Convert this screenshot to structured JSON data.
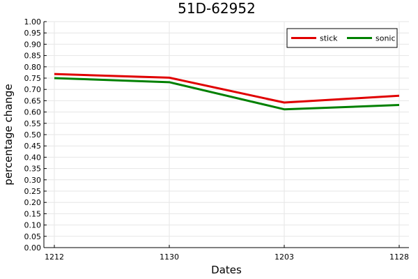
{
  "chart_data": {
    "type": "line",
    "title": "51D-62952",
    "xlabel": "Dates",
    "ylabel": "percentage change",
    "categories": [
      "1212",
      "1130",
      "1203",
      "1128"
    ],
    "ylim": [
      0,
      1.0
    ],
    "yticks": [
      "0.00",
      "0.05",
      "0.10",
      "0.15",
      "0.20",
      "0.25",
      "0.30",
      "0.35",
      "0.40",
      "0.45",
      "0.50",
      "0.55",
      "0.60",
      "0.65",
      "0.70",
      "0.75",
      "0.80",
      "0.85",
      "0.90",
      "0.95",
      "1.00"
    ],
    "grid": true,
    "legend_position": "top-right",
    "series": [
      {
        "name": "stick",
        "color": "#e00000",
        "values": [
          0.768,
          0.752,
          0.642,
          0.672
        ]
      },
      {
        "name": "sonic",
        "color": "#008000",
        "values": [
          0.75,
          0.732,
          0.612,
          0.631
        ]
      }
    ]
  }
}
